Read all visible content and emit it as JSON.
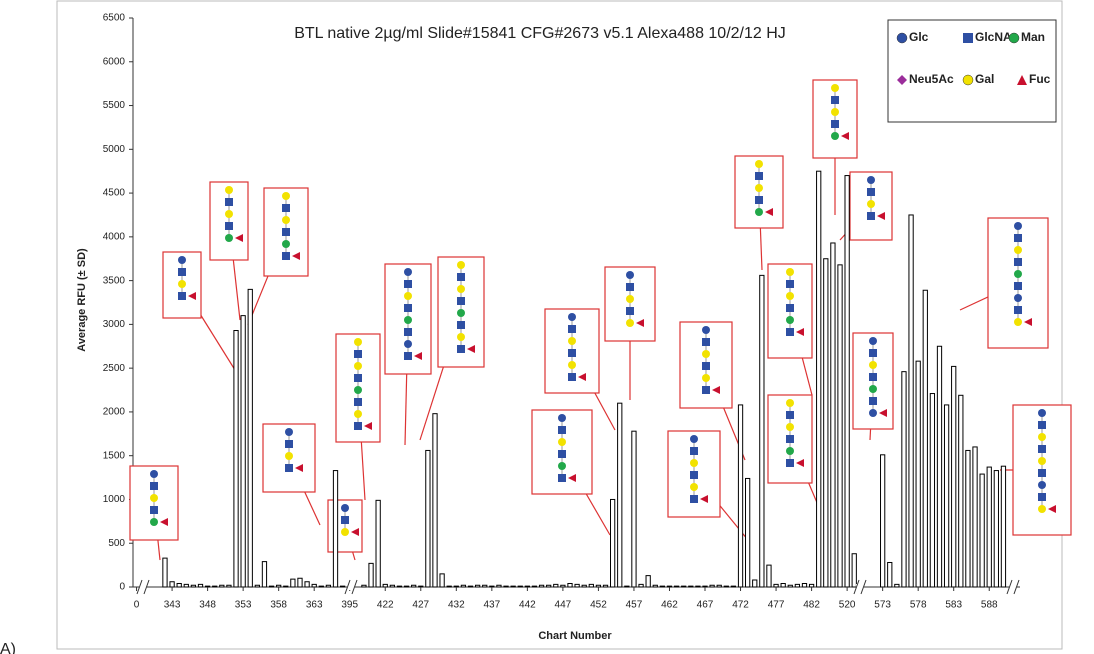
{
  "chart_data": {
    "type": "bar",
    "title": "BTL native 2µg/ml Slide#15841 CFG#2673 v5.1 Alexa488 10/2/12 HJ",
    "panel_label": "A)",
    "x_label": "Chart Number",
    "y_label": "Average RFU (± SD)",
    "color": "#000000",
    "ylim": [
      0,
      6500
    ],
    "yticks": [
      0,
      500,
      1000,
      1500,
      2000,
      2500,
      3000,
      3500,
      4000,
      4500,
      5000,
      5500,
      6000,
      6500
    ],
    "categories": [
      "0",
      null,
      null,
      null,
      null,
      "343",
      null,
      null,
      null,
      null,
      "348",
      null,
      null,
      null,
      null,
      "353",
      null,
      null,
      null,
      null,
      "358",
      null,
      null,
      null,
      null,
      "363",
      null,
      null,
      null,
      null,
      "395",
      null,
      null,
      null,
      null,
      "422",
      null,
      null,
      null,
      null,
      "427",
      null,
      null,
      null,
      null,
      "432",
      null,
      null,
      null,
      null,
      "437",
      null,
      null,
      null,
      null,
      "442",
      null,
      null,
      null,
      null,
      "447",
      null,
      null,
      null,
      null,
      "452",
      null,
      null,
      null,
      null,
      "457",
      null,
      null,
      null,
      null,
      "462",
      null,
      null,
      null,
      null,
      "467",
      null,
      null,
      null,
      null,
      "472",
      null,
      null,
      null,
      null,
      "477",
      null,
      null,
      null,
      null,
      "482",
      null,
      null,
      null,
      null,
      "520",
      null,
      null,
      null,
      null,
      "573",
      null,
      null,
      null,
      null,
      "578",
      null,
      null,
      null,
      null,
      "583",
      null,
      null,
      null,
      null,
      "588",
      null,
      null
    ],
    "values": [
      0,
      0,
      0,
      0,
      330,
      60,
      40,
      30,
      20,
      30,
      10,
      10,
      20,
      20,
      2930,
      3100,
      3400,
      20,
      290,
      10,
      20,
      10,
      90,
      100,
      60,
      30,
      10,
      20,
      1330,
      10,
      0,
      0,
      20,
      270,
      990,
      30,
      20,
      10,
      10,
      20,
      10,
      1560,
      1980,
      150,
      10,
      10,
      20,
      10,
      20,
      20,
      10,
      20,
      10,
      10,
      10,
      10,
      10,
      20,
      20,
      30,
      20,
      40,
      30,
      20,
      30,
      20,
      20,
      1000,
      2100,
      10,
      1780,
      30,
      130,
      20,
      10,
      10,
      10,
      10,
      10,
      10,
      10,
      20,
      20,
      10,
      10,
      2080,
      1240,
      80,
      3560,
      250,
      30,
      40,
      20,
      30,
      40,
      30,
      4750,
      3750,
      3930,
      3680,
      4700,
      380,
      0,
      0,
      0,
      1510,
      280,
      30,
      2460,
      4250,
      2580,
      3390,
      2210,
      2750,
      2080,
      2520,
      2190,
      1560,
      1600,
      1290,
      1370,
      1330,
      1380
    ],
    "legend": [
      {
        "name": "Glc",
        "color": "#2e4fa3",
        "shape": "circle"
      },
      {
        "name": "GlcNAc",
        "color": "#2e4fa3",
        "shape": "square"
      },
      {
        "name": "Man",
        "color": "#22a84a",
        "shape": "circle"
      },
      {
        "name": "Neu5Ac",
        "color": "#9b2d9b",
        "shape": "diamond"
      },
      {
        "name": "Gal",
        "color": "#f2e200",
        "shape": "circle"
      },
      {
        "name": "Fuc",
        "color": "#c8102e",
        "shape": "triangle"
      }
    ]
  }
}
